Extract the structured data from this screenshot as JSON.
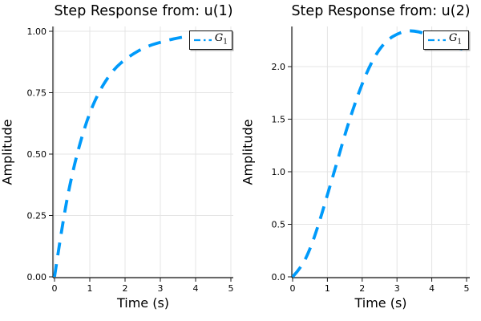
{
  "figure": {
    "background": "#ffffff",
    "colors": {
      "series_blue": "#009AFA",
      "grid": "#e4e4e4",
      "axis": "#1a1a1a",
      "text": "#000000"
    }
  },
  "chart_data": [
    {
      "type": "line",
      "title": "Step Response from: u(1)",
      "xlabel": "Time (s)",
      "ylabel": "Amplitude",
      "grid": true,
      "legend_position": "top-right",
      "xlim": [
        0,
        5
      ],
      "ylim": [
        0,
        1.02
      ],
      "xticks": {
        "values": [
          0,
          1,
          2,
          3,
          4,
          5
        ],
        "labels": [
          "0",
          "1",
          "2",
          "3",
          "4",
          "5"
        ]
      },
      "yticks": {
        "values": [
          0,
          0.25,
          0.5,
          0.75,
          1.0
        ],
        "labels": [
          "0.00",
          "0.25",
          "0.50",
          "0.75",
          "1.00"
        ]
      },
      "legend": {
        "label": "G",
        "sub": "1",
        "line_style": "dashed",
        "line_color": "#009AFA"
      },
      "series": [
        {
          "name": "G_1",
          "style": "dashed",
          "color": "#009AFA",
          "x": [
            0,
            0.25,
            0.5,
            0.75,
            1,
            1.25,
            1.5,
            1.75,
            2,
            2.25,
            2.5,
            2.75,
            3,
            3.25,
            3.5,
            3.75,
            4,
            4.25,
            4.5,
            4.75,
            5
          ],
          "y": [
            0,
            0.24,
            0.42,
            0.56,
            0.67,
            0.75,
            0.81,
            0.855,
            0.885,
            0.91,
            0.93,
            0.945,
            0.955,
            0.965,
            0.973,
            0.979,
            0.984,
            0.988,
            0.991,
            0.993,
            0.995
          ]
        }
      ]
    },
    {
      "type": "line",
      "title": "Step Response from: u(2)",
      "xlabel": "Time (s)",
      "ylabel": "Amplitude",
      "grid": true,
      "legend_position": "top-right",
      "xlim": [
        0,
        5
      ],
      "ylim": [
        0,
        2.39
      ],
      "xticks": {
        "values": [
          0,
          1,
          2,
          3,
          4,
          5
        ],
        "labels": [
          "0",
          "1",
          "2",
          "3",
          "4",
          "5"
        ]
      },
      "yticks": {
        "values": [
          0,
          0.5,
          1.0,
          1.5,
          2.0
        ],
        "labels": [
          "0.0",
          "0.5",
          "1.0",
          "1.5",
          "2.0"
        ]
      },
      "legend": {
        "label": "G",
        "sub": "1",
        "line_style": "dashed",
        "line_color": "#009AFA"
      },
      "series": [
        {
          "name": "G_1",
          "style": "dashed",
          "color": "#009AFA",
          "x": [
            0,
            0.25,
            0.5,
            0.75,
            1,
            1.25,
            1.5,
            1.75,
            2,
            2.25,
            2.5,
            2.75,
            3,
            3.25,
            3.5,
            3.75,
            4,
            4.25,
            4.5,
            4.75,
            5
          ],
          "y": [
            0,
            0.09,
            0.26,
            0.5,
            0.78,
            1.06,
            1.35,
            1.61,
            1.84,
            2.03,
            2.17,
            2.26,
            2.31,
            2.34,
            2.34,
            2.32,
            2.29,
            2.25,
            2.21,
            2.18,
            2.15
          ]
        }
      ]
    }
  ]
}
